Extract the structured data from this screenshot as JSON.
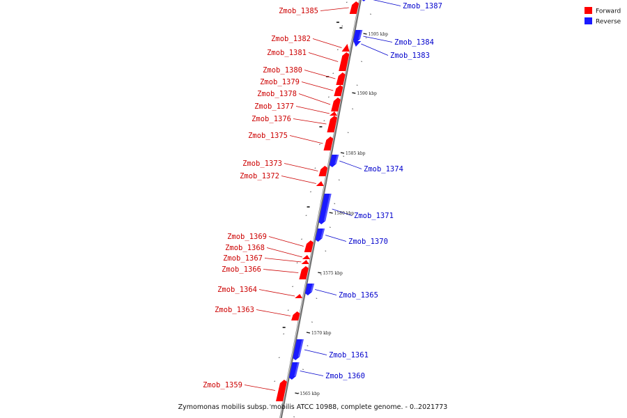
{
  "colors": {
    "forward": "#ff0000",
    "reverse": "#1a1aff",
    "forward_label": "#cc0000",
    "reverse_label": "#0000cc",
    "backbone": "#888888"
  },
  "legend": {
    "forward": "Forward",
    "reverse": "Reverse"
  },
  "caption": "Zymomonas mobilis subsp. mobilis ATCC 10988, complete genome. - 0..2021773",
  "kbp_ticks": [
    {
      "label": "1595 kbp",
      "pos": 1595
    },
    {
      "label": "1590 kbp",
      "pos": 1590
    },
    {
      "label": "1585 kbp",
      "pos": 1585
    },
    {
      "label": "1580 kbp",
      "pos": 1580
    },
    {
      "label": "1575 kbp",
      "pos": 1575
    },
    {
      "label": "1570 kbp",
      "pos": 1570
    },
    {
      "label": "1565 kbp",
      "pos": 1565
    }
  ],
  "genes": [
    {
      "name": "Zmob_1387",
      "strand": "reverse"
    },
    {
      "name": "Zmob_1385",
      "strand": "forward"
    },
    {
      "name": "Zmob_1384",
      "strand": "reverse"
    },
    {
      "name": "Zmob_1383",
      "strand": "reverse"
    },
    {
      "name": "Zmob_1382",
      "strand": "forward"
    },
    {
      "name": "Zmob_1381",
      "strand": "forward"
    },
    {
      "name": "Zmob_1380",
      "strand": "forward"
    },
    {
      "name": "Zmob_1379",
      "strand": "forward"
    },
    {
      "name": "Zmob_1378",
      "strand": "forward"
    },
    {
      "name": "Zmob_1377",
      "strand": "forward"
    },
    {
      "name": "Zmob_1376",
      "strand": "forward"
    },
    {
      "name": "Zmob_1375",
      "strand": "forward"
    },
    {
      "name": "Zmob_1374",
      "strand": "reverse"
    },
    {
      "name": "Zmob_1373",
      "strand": "forward"
    },
    {
      "name": "Zmob_1372",
      "strand": "forward"
    },
    {
      "name": "Zmob_1371",
      "strand": "reverse"
    },
    {
      "name": "Zmob_1370",
      "strand": "reverse"
    },
    {
      "name": "Zmob_1369",
      "strand": "forward"
    },
    {
      "name": "Zmob_1368",
      "strand": "forward"
    },
    {
      "name": "Zmob_1367",
      "strand": "forward"
    },
    {
      "name": "Zmob_1366",
      "strand": "forward"
    },
    {
      "name": "Zmob_1365",
      "strand": "reverse"
    },
    {
      "name": "Zmob_1364",
      "strand": "forward"
    },
    {
      "name": "Zmob_1363",
      "strand": "forward"
    },
    {
      "name": "Zmob_1361",
      "strand": "reverse"
    },
    {
      "name": "Zmob_1360",
      "strand": "reverse"
    },
    {
      "name": "Zmob_1359",
      "strand": "forward"
    }
  ]
}
